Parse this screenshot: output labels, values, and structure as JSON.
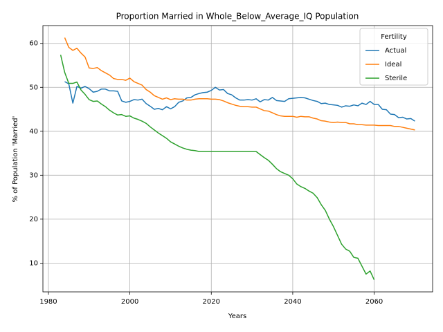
{
  "chart_data": {
    "type": "line",
    "title": "Proportion Married in Whole_Below_Average_IQ Population",
    "xlabel": "Years",
    "ylabel": "% of Population 'Married'",
    "legend_title": "Fertility",
    "legend_loc": "upper right",
    "grid": true,
    "xlim": [
      1978.65,
      2074.35
    ],
    "ylim": [
      3.45,
      64.05
    ],
    "xticks": [
      1980,
      2000,
      2020,
      2040,
      2060
    ],
    "yticks": [
      10,
      20,
      30,
      40,
      50,
      60
    ],
    "x": [
      1983,
      1984,
      1985,
      1986,
      1987,
      1988,
      1989,
      1990,
      1991,
      1992,
      1993,
      1994,
      1995,
      1996,
      1997,
      1998,
      1999,
      2000,
      2001,
      2002,
      2003,
      2004,
      2005,
      2006,
      2007,
      2008,
      2009,
      2010,
      2011,
      2012,
      2013,
      2014,
      2015,
      2016,
      2017,
      2018,
      2019,
      2020,
      2021,
      2022,
      2023,
      2024,
      2025,
      2026,
      2027,
      2028,
      2029,
      2030,
      2031,
      2032,
      2033,
      2034,
      2035,
      2036,
      2037,
      2038,
      2039,
      2040,
      2041,
      2042,
      2043,
      2044,
      2045,
      2046,
      2047,
      2048,
      2049,
      2050,
      2051,
      2052,
      2053,
      2054,
      2055,
      2056,
      2057,
      2058,
      2059,
      2060,
      2061,
      2062,
      2063,
      2064,
      2065,
      2066,
      2067,
      2068,
      2069,
      2070
    ],
    "series": [
      {
        "name": "Actual",
        "color": "#1f77b4",
        "values": [
          null,
          51.3,
          50.8,
          46.4,
          50.2,
          49.8,
          50.2,
          49.7,
          48.9,
          49.1,
          49.6,
          49.6,
          49.2,
          49.2,
          49.1,
          46.9,
          46.6,
          46.8,
          47.2,
          47.1,
          47.3,
          46.3,
          45.7,
          45.0,
          45.2,
          44.9,
          45.6,
          45.1,
          45.6,
          46.6,
          46.9,
          47.6,
          47.7,
          48.3,
          48.6,
          48.8,
          48.9,
          49.3,
          50.0,
          49.4,
          49.5,
          48.6,
          48.3,
          47.6,
          47.1,
          47.1,
          47.2,
          47.1,
          47.4,
          46.7,
          47.2,
          47.1,
          47.7,
          47.0,
          46.9,
          46.8,
          47.4,
          47.5,
          47.6,
          47.7,
          47.6,
          47.3,
          47.0,
          46.8,
          46.3,
          46.4,
          46.1,
          46.0,
          45.9,
          45.5,
          45.8,
          45.7,
          46.0,
          45.8,
          46.4,
          46.1,
          46.8,
          46.1,
          46.1,
          45.0,
          44.9,
          43.9,
          43.8,
          43.1,
          43.2,
          42.8,
          42.9,
          42.3
        ]
      },
      {
        "name": "Ideal",
        "color": "#ff7f0e",
        "values": [
          null,
          61.3,
          59.1,
          58.4,
          58.9,
          57.8,
          56.9,
          54.4,
          54.3,
          54.5,
          53.8,
          53.3,
          52.8,
          52.0,
          51.8,
          51.8,
          51.6,
          52.1,
          51.3,
          50.9,
          50.5,
          49.5,
          48.9,
          48.1,
          47.7,
          47.3,
          47.6,
          47.2,
          47.4,
          47.3,
          47.3,
          47.1,
          47.1,
          47.3,
          47.4,
          47.4,
          47.4,
          47.3,
          47.3,
          47.2,
          46.9,
          46.5,
          46.2,
          45.9,
          45.7,
          45.6,
          45.6,
          45.5,
          45.5,
          45.1,
          44.7,
          44.6,
          44.2,
          43.8,
          43.5,
          43.4,
          43.4,
          43.4,
          43.2,
          43.4,
          43.3,
          43.3,
          43.0,
          42.8,
          42.4,
          42.3,
          42.1,
          42.0,
          42.1,
          42.0,
          42.0,
          41.7,
          41.7,
          41.5,
          41.5,
          41.4,
          41.4,
          41.4,
          41.3,
          41.3,
          41.3,
          41.3,
          41.1,
          41.1,
          40.9,
          40.7,
          40.5,
          40.3
        ]
      },
      {
        "name": "Sterile",
        "color": "#2ca02c",
        "values": [
          57.4,
          53.4,
          50.9,
          50.9,
          51.2,
          49.4,
          48.4,
          47.2,
          46.8,
          46.9,
          46.2,
          45.6,
          44.8,
          44.2,
          43.7,
          43.8,
          43.4,
          43.5,
          43.0,
          42.7,
          42.3,
          41.8,
          41.0,
          40.3,
          39.6,
          39.0,
          38.4,
          37.6,
          37.1,
          36.6,
          36.2,
          35.9,
          35.7,
          35.6,
          35.4,
          35.4,
          35.4,
          35.4,
          35.4,
          35.4,
          35.4,
          35.4,
          35.4,
          35.4,
          35.4,
          35.4,
          35.4,
          35.4,
          35.4,
          34.7,
          34.0,
          33.4,
          32.5,
          31.5,
          30.8,
          30.4,
          30.0,
          29.2,
          28.0,
          27.4,
          27.0,
          26.4,
          25.9,
          24.9,
          23.3,
          22.0,
          20.0,
          18.3,
          16.3,
          14.3,
          13.2,
          12.7,
          11.3,
          11.1,
          9.3,
          7.5,
          8.2,
          6.2,
          null,
          null,
          null,
          null,
          null,
          null,
          null,
          null,
          null,
          null
        ]
      }
    ]
  }
}
